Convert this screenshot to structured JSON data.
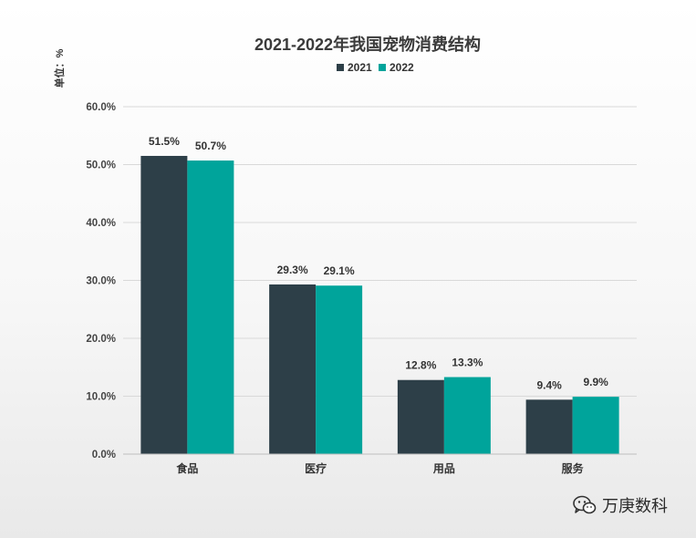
{
  "chart_data": {
    "type": "bar",
    "title": "2021-2022年我国宠物消费结构",
    "unit_label": "单位：%",
    "categories": [
      "食品",
      "医疗",
      "用品",
      "服务"
    ],
    "series": [
      {
        "name": "2021",
        "color": "#2d3f48",
        "values": [
          51.5,
          29.3,
          12.8,
          9.4
        ],
        "labels": [
          "51.5%",
          "29.3%",
          "12.8%",
          "9.4%"
        ]
      },
      {
        "name": "2022",
        "color": "#00a49b",
        "values": [
          50.7,
          29.1,
          13.3,
          9.9
        ],
        "labels": [
          "50.7%",
          "29.1%",
          "13.3%",
          "9.9%"
        ]
      }
    ],
    "ylim": [
      0,
      60
    ],
    "yticks": [
      0,
      10,
      20,
      30,
      40,
      50,
      60
    ],
    "ytick_labels": [
      "0.0%",
      "10.0%",
      "20.0%",
      "30.0%",
      "40.0%",
      "50.0%",
      "60.0%"
    ],
    "grid": true,
    "legend_position": "top-center"
  },
  "watermark": {
    "text": "万庚数科",
    "icon": "wechat-icon"
  }
}
